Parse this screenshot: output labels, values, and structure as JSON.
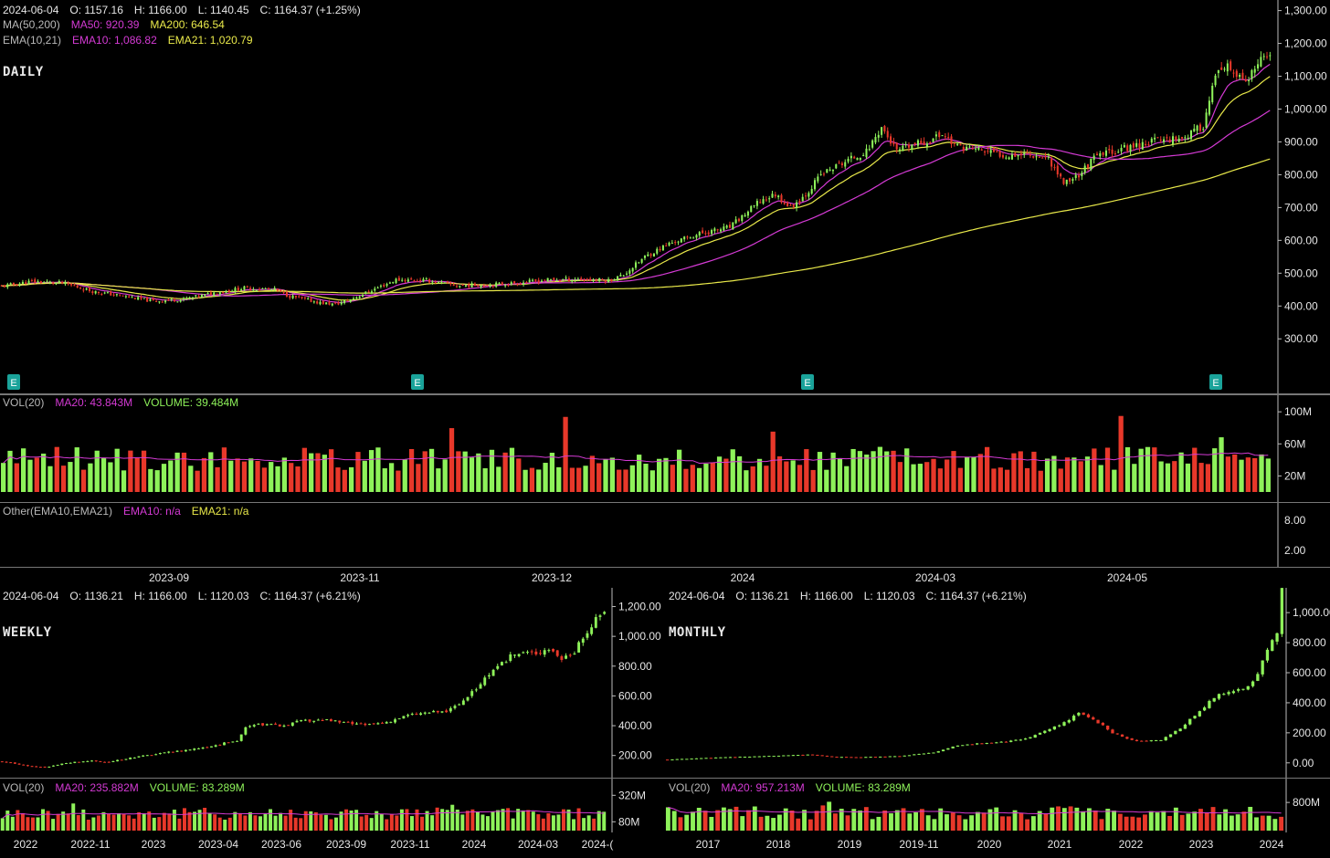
{
  "colors": {
    "up": "#8ef25a",
    "down": "#e8382a",
    "ma_mag": "#d43ad4",
    "ma_yel": "#e9e94a",
    "earn": "#1aa39a",
    "grid": "#555555"
  },
  "daily": {
    "title": "DAILY",
    "ohlc_line": {
      "date": "2024-06-04",
      "o": "O: 1157.16",
      "h": "H: 1166.00",
      "l": "L: 1140.45",
      "c": "C: 1164.37 (+1.25%)"
    },
    "ma_line": {
      "label": "MA(50,200)",
      "ma50": "MA50: 920.39",
      "ma200": "MA200: 646.54"
    },
    "ema_line": {
      "label": "EMA(10,21)",
      "ema10": "EMA10: 1,086.82",
      "ema21": "EMA21: 1,020.79"
    },
    "vol_line": {
      "label": "VOL(20)",
      "ma20": "MA20: 43.843M",
      "volume": "VOLUME: 39.484M"
    },
    "other_line": {
      "label": "Other(EMA10,EMA21)",
      "ema10": "EMA10: n/a",
      "ema21": "EMA21: n/a"
    },
    "earnings_marker": "E",
    "other_ticks": [
      "8.00",
      "2.00"
    ]
  },
  "weekly": {
    "title": "WEEKLY",
    "ohlc_line": {
      "date": "2024-06-04",
      "o": "O: 1136.21",
      "h": "H: 1166.00",
      "l": "L: 1120.03",
      "c": "C: 1164.37 (+6.21%)"
    },
    "vol_line": {
      "label": "VOL(20)",
      "ma20": "MA20: 235.882M",
      "volume": "VOLUME: 83.289M"
    }
  },
  "monthly": {
    "title": "MONTHLY",
    "ohlc_line": {
      "date": "2024-06-04",
      "o": "O: 1136.21",
      "h": "H: 1166.00",
      "l": "L: 1120.03",
      "c": "C: 1164.37 (+6.21%)"
    },
    "vol_line": {
      "label": "VOL(20)",
      "ma20": "MA20: 957.213M",
      "volume": "VOLUME: 83.289M"
    }
  },
  "chart_data": [
    {
      "type": "candlestick",
      "title": "DAILY",
      "x_dates": [
        "2023-09",
        "2023-11",
        "2023-12",
        "2024",
        "2024-03",
        "2024-05"
      ],
      "y_ticks": [
        "1,300.00",
        "1,200.00",
        "1,100.00",
        "1,000.00",
        "900.00",
        "800.00",
        "700.00",
        "600.00",
        "500.00",
        "400.00",
        "300.00"
      ],
      "ylim": [
        220,
        1310
      ],
      "close_anchors": [
        [
          0,
          460
        ],
        [
          10,
          475
        ],
        [
          20,
          470
        ],
        [
          30,
          445
        ],
        [
          40,
          430
        ],
        [
          50,
          415
        ],
        [
          60,
          420
        ],
        [
          70,
          440
        ],
        [
          80,
          455
        ],
        [
          90,
          450
        ],
        [
          95,
          430
        ],
        [
          100,
          420
        ],
        [
          105,
          410
        ],
        [
          110,
          405
        ],
        [
          115,
          420
        ],
        [
          125,
          460
        ],
        [
          130,
          480
        ],
        [
          140,
          478
        ],
        [
          150,
          462
        ],
        [
          160,
          465
        ],
        [
          170,
          470
        ],
        [
          180,
          480
        ],
        [
          190,
          482
        ],
        [
          200,
          478
        ],
        [
          205,
          495
        ],
        [
          212,
          550
        ],
        [
          220,
          590
        ],
        [
          230,
          620
        ],
        [
          240,
          640
        ],
        [
          245,
          680
        ],
        [
          250,
          720
        ],
        [
          255,
          740
        ],
        [
          260,
          700
        ],
        [
          265,
          740
        ],
        [
          270,
          800
        ],
        [
          278,
          840
        ],
        [
          285,
          870
        ],
        [
          290,
          945
        ],
        [
          295,
          870
        ],
        [
          300,
          890
        ],
        [
          305,
          900
        ],
        [
          310,
          925
        ],
        [
          315,
          885
        ],
        [
          320,
          880
        ],
        [
          330,
          860
        ],
        [
          338,
          865
        ],
        [
          345,
          850
        ],
        [
          350,
          775
        ],
        [
          355,
          800
        ],
        [
          360,
          850
        ],
        [
          365,
          870
        ],
        [
          370,
          880
        ],
        [
          380,
          905
        ],
        [
          390,
          915
        ],
        [
          396,
          950
        ],
        [
          400,
          1100
        ],
        [
          404,
          1125
        ],
        [
          410,
          1080
        ],
        [
          415,
          1145
        ],
        [
          418,
          1164
        ]
      ],
      "n_bars": 419,
      "vol_ticks": [
        "100M",
        "60M",
        "20M"
      ],
      "vol_ylim": [
        0,
        115
      ]
    },
    {
      "type": "candlestick",
      "title": "WEEKLY",
      "x_dates": [
        "2022",
        "2022-11",
        "2023",
        "2023-04",
        "2023-06",
        "2023-09",
        "2023-11",
        "2024",
        "2024-03",
        "2024-("
      ],
      "y_ticks": [
        "1,200.00",
        "1,000.00",
        "800.00",
        "600.00",
        "400.00",
        "200.00"
      ],
      "ylim": [
        100,
        1240
      ],
      "close_anchors": [
        [
          0,
          160
        ],
        [
          5,
          135
        ],
        [
          10,
          118
        ],
        [
          15,
          150
        ],
        [
          20,
          165
        ],
        [
          25,
          155
        ],
        [
          30,
          185
        ],
        [
          35,
          205
        ],
        [
          40,
          225
        ],
        [
          45,
          245
        ],
        [
          50,
          270
        ],
        [
          55,
          300
        ],
        [
          57,
          385
        ],
        [
          60,
          410
        ],
        [
          65,
          400
        ],
        [
          70,
          430
        ],
        [
          75,
          440
        ],
        [
          80,
          420
        ],
        [
          85,
          405
        ],
        [
          90,
          425
        ],
        [
          95,
          470
        ],
        [
          100,
          490
        ],
        [
          104,
          495
        ],
        [
          107,
          545
        ],
        [
          110,
          620
        ],
        [
          113,
          720
        ],
        [
          116,
          785
        ],
        [
          119,
          870
        ],
        [
          122,
          890
        ],
        [
          125,
          890
        ],
        [
          128,
          920
        ],
        [
          131,
          850
        ],
        [
          134,
          900
        ],
        [
          137,
          1030
        ],
        [
          139,
          1110
        ],
        [
          141,
          1164
        ]
      ],
      "n_bars": 142,
      "vol_ticks": [
        "320M",
        "80M"
      ],
      "vol_ylim": [
        0,
        430
      ]
    },
    {
      "type": "candlestick",
      "title": "MONTHLY",
      "x_dates": [
        "2017",
        "2018",
        "2019",
        "2019-11",
        "2020",
        "2021",
        "2022",
        "2023",
        "2024"
      ],
      "y_ticks": [
        "1,000.00",
        "800.00",
        "600.00",
        "400.00",
        "200.00",
        "0.00"
      ],
      "ylim": [
        -50,
        1080
      ],
      "close_anchors": [
        [
          0,
          22
        ],
        [
          10,
          35
        ],
        [
          20,
          45
        ],
        [
          30,
          55
        ],
        [
          34,
          40
        ],
        [
          40,
          38
        ],
        [
          48,
          45
        ],
        [
          55,
          70
        ],
        [
          60,
          115
        ],
        [
          65,
          130
        ],
        [
          70,
          140
        ],
        [
          74,
          160
        ],
        [
          78,
          210
        ],
        [
          82,
          270
        ],
        [
          85,
          330
        ],
        [
          88,
          290
        ],
        [
          92,
          200
        ],
        [
          96,
          150
        ],
        [
          99,
          145
        ],
        [
          102,
          150
        ],
        [
          106,
          230
        ],
        [
          110,
          350
        ],
        [
          114,
          460
        ],
        [
          118,
          480
        ],
        [
          121,
          540
        ],
        [
          124,
          740
        ],
        [
          126,
          880
        ],
        [
          127,
          1164
        ]
      ],
      "n_bars": 128,
      "vol_ticks": [
        "800M"
      ],
      "vol_ylim": [
        0,
        1400
      ]
    }
  ]
}
